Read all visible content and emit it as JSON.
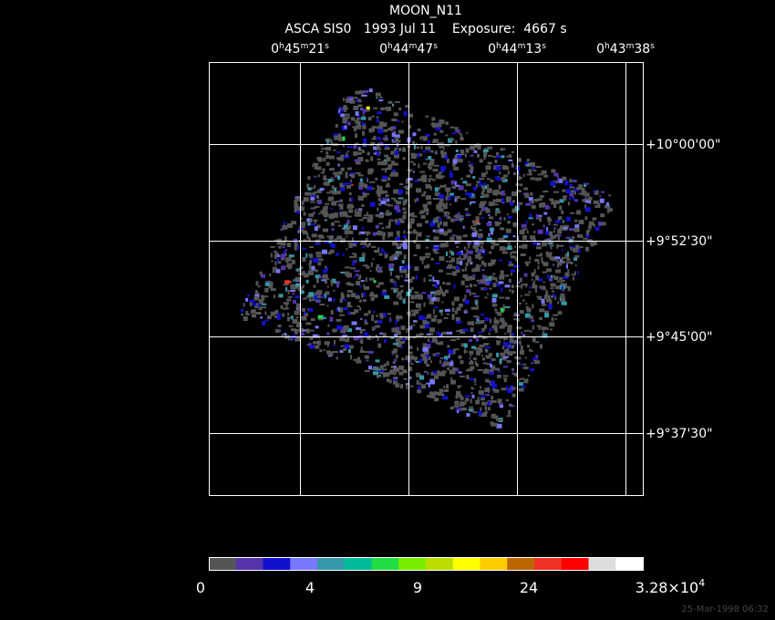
{
  "header": {
    "title": "MOON_N11",
    "subtitle": "ASCA SIS0   1993 Jul 11    Exposure:  4667 s"
  },
  "ra_labels": [
    [
      "0",
      "h",
      "45",
      "m",
      "21",
      "s"
    ],
    [
      "0",
      "h",
      "44",
      "m",
      "47",
      "s"
    ],
    [
      "0",
      "h",
      "44",
      "m",
      "13",
      "s"
    ],
    [
      "0",
      "h",
      "43",
      "m",
      "38",
      "s"
    ]
  ],
  "dec_labels": [
    "+10°00'00\"",
    "+9°52'30\"",
    "+9°45'00\"",
    "+9°37'30\""
  ],
  "colorbar": {
    "colors": [
      "#555555",
      "#5533aa",
      "#1111cc",
      "#7777ff",
      "#3399aa",
      "#00bb99",
      "#22dd44",
      "#77ee00",
      "#bbdd00",
      "#ffff00",
      "#ffcc00",
      "#bb6600",
      "#ee3322",
      "#ff0000",
      "#dddddd",
      "#ffffff"
    ],
    "labels": [
      [
        "0"
      ],
      [
        "4"
      ],
      [
        "9"
      ],
      [
        "24"
      ],
      [
        "3.28×10",
        "4"
      ]
    ]
  },
  "timestamp": "25-Mar-1998 06:32"
}
